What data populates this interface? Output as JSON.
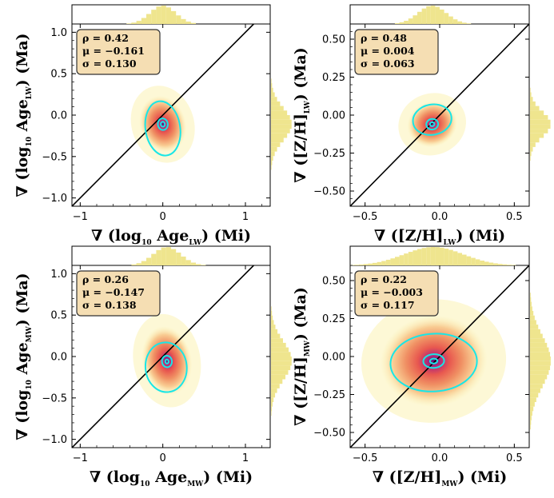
{
  "colors": {
    "hist": "#efe58e",
    "contour": "#19e6e6",
    "box_fill": "#f5deb3",
    "one_to_one": "#000000",
    "density_low": "#fbf3b4",
    "density_mid": "#ef8a5d",
    "density_high": "#5a1680"
  },
  "chart_data": [
    {
      "type": "scatter",
      "panel": "top-left",
      "xlabel": "∇ (log10 AgeLW) (Mi)",
      "ylabel": "∇ (log10 AgeLW) (Ma)",
      "xlabel_parts": {
        "main": "∇ (log",
        "sub1": "10",
        "mid": " Age",
        "sub2": "LW",
        "tail": ") (Mi)"
      },
      "ylabel_parts": {
        "main": "∇ (log",
        "sub1": "10",
        "mid": " Age",
        "sub2": "LW",
        "tail": ") (Ma)"
      },
      "xlim": [
        -1.1,
        1.3
      ],
      "ylim": [
        -1.1,
        1.1
      ],
      "xticks": [
        -1,
        0,
        1
      ],
      "xtick_labels": [
        "−1",
        "0",
        "1"
      ],
      "yticks": [
        -1.0,
        -0.5,
        0.0,
        0.5,
        1.0
      ],
      "ytick_labels": [
        "−1.0",
        "−0.5",
        "0.0",
        "0.5",
        "1.0"
      ],
      "stats": [
        "ρ = 0.42",
        "μ = −0.161",
        "σ = 0.130"
      ],
      "center": [
        0.0,
        -0.11
      ],
      "spread": [
        0.28,
        0.35
      ],
      "tilt": -0.5,
      "contours": [
        {
          "rx": 0.21,
          "ry": 0.33,
          "cx": 0.0,
          "cy": -0.16
        },
        {
          "rx": 0.06,
          "ry": 0.07,
          "cx": 0.0,
          "cy": -0.11
        },
        {
          "rx": 0.025,
          "ry": 0.03,
          "cx": 0.0,
          "cy": -0.11
        }
      ]
    },
    {
      "type": "scatter",
      "panel": "top-right",
      "xlabel": "∇ ([Z/H]LW) (Mi)",
      "ylabel": "∇ ([Z/H]LW) (Ma)",
      "xlabel_parts": {
        "main": "∇ ([Z/H]",
        "sub1": "LW",
        "mid": ") (Mi)",
        "sub2": "",
        "tail": ""
      },
      "ylabel_parts": {
        "main": "∇ ([Z/H]",
        "sub1": "LW",
        "mid": ") (Ma)",
        "sub2": "",
        "tail": ""
      },
      "xlim": [
        -0.6,
        0.6
      ],
      "ylim": [
        -0.6,
        0.6
      ],
      "xticks": [
        -0.5,
        0.0,
        0.5
      ],
      "xtick_labels": [
        "−0.5",
        "0.0",
        "0.5"
      ],
      "yticks": [
        -0.5,
        -0.25,
        0.0,
        0.25,
        0.5
      ],
      "ytick_labels": [
        "−0.50",
        "−0.25",
        "0.00",
        "0.25",
        "0.50"
      ],
      "stats": [
        "ρ = 0.48",
        "μ = 0.004",
        "σ = 0.063"
      ],
      "center": [
        -0.05,
        -0.06
      ],
      "spread": [
        0.17,
        0.15
      ],
      "tilt": -0.6,
      "contours": [
        {
          "rx": 0.13,
          "ry": 0.1,
          "cx": -0.05,
          "cy": -0.03
        },
        {
          "rx": 0.04,
          "ry": 0.035,
          "cx": -0.05,
          "cy": -0.06
        },
        {
          "rx": 0.015,
          "ry": 0.013,
          "cx": -0.05,
          "cy": -0.06
        }
      ]
    },
    {
      "type": "scatter",
      "panel": "bottom-left",
      "xlabel": "∇ (log10 AgeMW) (Mi)",
      "ylabel": "∇ (log10 AgeMW) (Ma)",
      "xlabel_parts": {
        "main": "∇ (log",
        "sub1": "10",
        "mid": " Age",
        "sub2": "MW",
        "tail": ") (Mi)"
      },
      "ylabel_parts": {
        "main": "∇ (log",
        "sub1": "10",
        "mid": " Age",
        "sub2": "MW",
        "tail": ") (Ma)"
      },
      "xlim": [
        -1.1,
        1.3
      ],
      "ylim": [
        -1.1,
        1.1
      ],
      "xticks": [
        -1,
        0,
        1
      ],
      "xtick_labels": [
        "−1",
        "0",
        "1"
      ],
      "yticks": [
        -1.0,
        -0.5,
        0.0,
        0.5,
        1.0
      ],
      "ytick_labels": [
        "−1.0",
        "−0.5",
        "0.0",
        "0.5",
        "1.0"
      ],
      "stats": [
        "ρ = 0.26",
        "μ = −0.147",
        "σ = 0.138"
      ],
      "center": [
        0.05,
        -0.05
      ],
      "spread": [
        0.3,
        0.42
      ],
      "tilt": -0.3,
      "contours": [
        {
          "rx": 0.25,
          "ry": 0.3,
          "cx": 0.04,
          "cy": -0.13
        },
        {
          "rx": 0.06,
          "ry": 0.07,
          "cx": 0.05,
          "cy": -0.06
        },
        {
          "rx": 0.02,
          "ry": 0.025,
          "cx": 0.05,
          "cy": -0.06
        }
      ]
    },
    {
      "type": "scatter",
      "panel": "bottom-right",
      "xlabel": "∇ ([Z/H]MW) (Mi)",
      "ylabel": "∇ ([Z/H]MW) (Ma)",
      "xlabel_parts": {
        "main": "∇ ([Z/H]",
        "sub1": "MW",
        "mid": ") (Mi)",
        "sub2": "",
        "tail": ""
      },
      "ylabel_parts": {
        "main": "∇ ([Z/H]",
        "sub1": "MW",
        "mid": ") (Ma)",
        "sub2": "",
        "tail": ""
      },
      "xlim": [
        -0.6,
        0.6
      ],
      "ylim": [
        -0.6,
        0.6
      ],
      "xticks": [
        -0.5,
        0.0,
        0.5
      ],
      "xtick_labels": [
        "−0.5",
        "0.0",
        "0.5"
      ],
      "yticks": [
        -0.5,
        -0.25,
        0.0,
        0.25,
        0.5
      ],
      "ytick_labels": [
        "−0.50",
        "−0.25",
        "0.00",
        "0.25",
        "0.50"
      ],
      "stats": [
        "ρ = 0.22",
        "μ = −0.003",
        "σ = 0.117"
      ],
      "center": [
        -0.04,
        -0.03
      ],
      "spread": [
        0.36,
        0.3
      ],
      "tilt": -0.2,
      "contours": [
        {
          "rx": 0.29,
          "ry": 0.19,
          "cx": -0.04,
          "cy": -0.04
        },
        {
          "rx": 0.07,
          "ry": 0.045,
          "cx": -0.04,
          "cy": -0.03
        },
        {
          "rx": 0.025,
          "ry": 0.016,
          "cx": -0.04,
          "cy": -0.03
        }
      ]
    }
  ]
}
